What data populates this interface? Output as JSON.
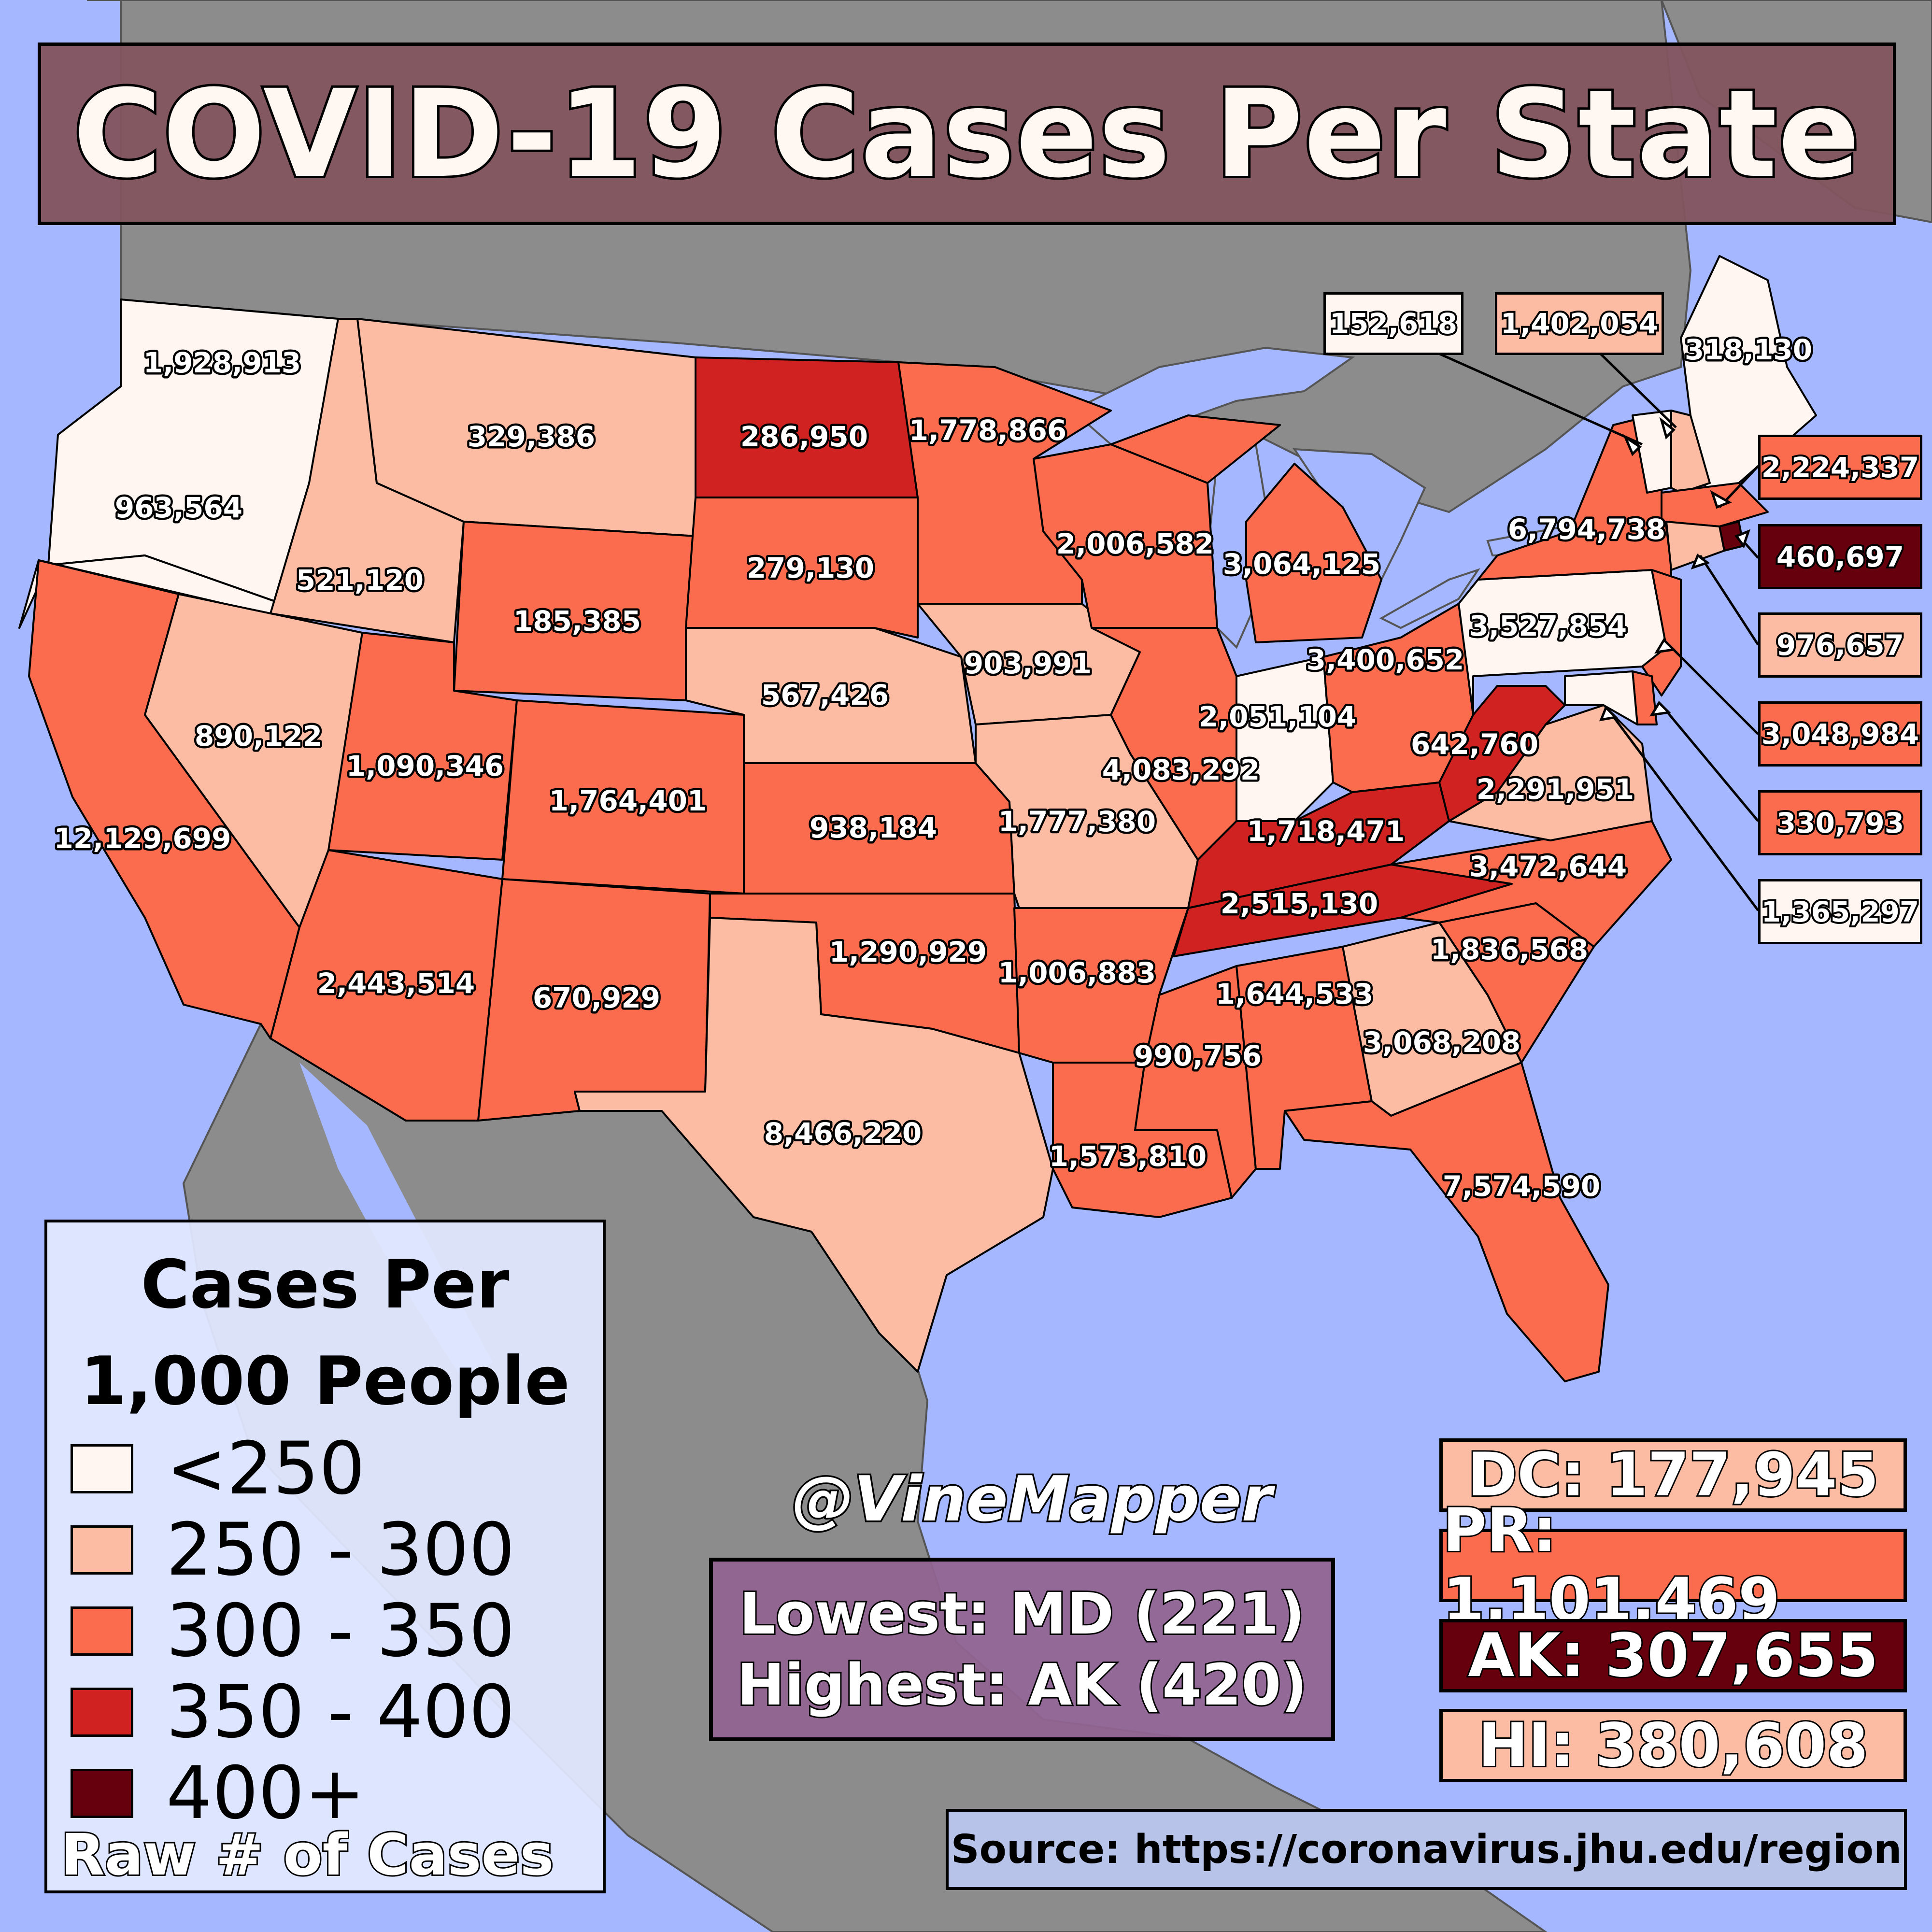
{
  "title": "COVID-19 Cases Per State",
  "colors": {
    "ocean": "#a4b7ff",
    "land_other": "#8c8c8c",
    "bin_lt250": "#fff6f2",
    "bin_250_300": "#fcbca3",
    "bin_300_350": "#fb6b4e",
    "bin_350_400": "#d02321",
    "bin_400_plus": "#66000d"
  },
  "legend": {
    "title_line1": "Cases Per",
    "title_line2": "1,000 People",
    "items": [
      {
        "label": "<250",
        "color": "#fff6f2"
      },
      {
        "label": "250 - 300",
        "color": "#fcbca3"
      },
      {
        "label": "300 - 350",
        "color": "#fb6b4e"
      },
      {
        "label": "350 - 400",
        "color": "#d02321"
      },
      {
        "label": "400+",
        "color": "#66000d"
      }
    ],
    "raw_note": "Raw # of Cases"
  },
  "watermark": "@VineMapper",
  "extremes": {
    "lowest": "Lowest: MD (221)",
    "highest": "Highest: AK (420)"
  },
  "side_boxes": [
    {
      "label": "DC: 177,945",
      "color": "#fcbca3"
    },
    {
      "label": "PR: 1,101,469",
      "color": "#fb6b4e"
    },
    {
      "label": "AK: 307,655",
      "color": "#66000d"
    },
    {
      "label": "HI: 380,608",
      "color": "#fcbca3"
    }
  ],
  "source": "Source: https://coronavirus.jhu.edu/region",
  "states": [
    {
      "abbr": "WA",
      "cases": "1,928,913",
      "color": "#fff6f2"
    },
    {
      "abbr": "OR",
      "cases": "963,564",
      "color": "#fff6f2"
    },
    {
      "abbr": "CA",
      "cases": "12,129,699",
      "color": "#fb6b4e"
    },
    {
      "abbr": "ID",
      "cases": "521,120",
      "color": "#fcbca3"
    },
    {
      "abbr": "NV",
      "cases": "890,122",
      "color": "#fcbca3"
    },
    {
      "abbr": "MT",
      "cases": "329,386",
      "color": "#fcbca3"
    },
    {
      "abbr": "WY",
      "cases": "185,385",
      "color": "#fb6b4e"
    },
    {
      "abbr": "UT",
      "cases": "1,090,346",
      "color": "#fb6b4e"
    },
    {
      "abbr": "AZ",
      "cases": "2,443,514",
      "color": "#fb6b4e"
    },
    {
      "abbr": "CO",
      "cases": "1,764,401",
      "color": "#fb6b4e"
    },
    {
      "abbr": "NM",
      "cases": "670,929",
      "color": "#fb6b4e"
    },
    {
      "abbr": "ND",
      "cases": "286,950",
      "color": "#d02321"
    },
    {
      "abbr": "SD",
      "cases": "279,130",
      "color": "#fb6b4e"
    },
    {
      "abbr": "NE",
      "cases": "567,426",
      "color": "#fcbca3"
    },
    {
      "abbr": "KS",
      "cases": "938,184",
      "color": "#fb6b4e"
    },
    {
      "abbr": "OK",
      "cases": "1,290,929",
      "color": "#fb6b4e"
    },
    {
      "abbr": "TX",
      "cases": "8,466,220",
      "color": "#fcbca3"
    },
    {
      "abbr": "MN",
      "cases": "1,778,866",
      "color": "#fb6b4e"
    },
    {
      "abbr": "IA",
      "cases": "903,991",
      "color": "#fcbca3"
    },
    {
      "abbr": "MO",
      "cases": "1,777,380",
      "color": "#fcbca3"
    },
    {
      "abbr": "AR",
      "cases": "1,006,883",
      "color": "#fb6b4e"
    },
    {
      "abbr": "LA",
      "cases": "1,573,810",
      "color": "#fb6b4e"
    },
    {
      "abbr": "WI",
      "cases": "2,006,582",
      "color": "#fb6b4e"
    },
    {
      "abbr": "IL",
      "cases": "4,083,292",
      "color": "#fb6b4e"
    },
    {
      "abbr": "MI",
      "cases": "3,064,125",
      "color": "#fb6b4e"
    },
    {
      "abbr": "IN",
      "cases": "2,051,104",
      "color": "#fff6f2"
    },
    {
      "abbr": "OH",
      "cases": "3,400,652",
      "color": "#fb6b4e"
    },
    {
      "abbr": "KY",
      "cases": "1,718,471",
      "color": "#d02321"
    },
    {
      "abbr": "TN",
      "cases": "2,515,130",
      "color": "#d02321"
    },
    {
      "abbr": "MS",
      "cases": "990,756",
      "color": "#fb6b4e"
    },
    {
      "abbr": "AL",
      "cases": "1,644,533",
      "color": "#fb6b4e"
    },
    {
      "abbr": "GA",
      "cases": "3,068,208",
      "color": "#fcbca3"
    },
    {
      "abbr": "FL",
      "cases": "7,574,590",
      "color": "#fb6b4e"
    },
    {
      "abbr": "SC",
      "cases": "1,836,568",
      "color": "#fb6b4e"
    },
    {
      "abbr": "NC",
      "cases": "3,472,644",
      "color": "#fb6b4e"
    },
    {
      "abbr": "VA",
      "cases": "2,291,951",
      "color": "#fcbca3"
    },
    {
      "abbr": "WV",
      "cases": "642,760",
      "color": "#d02321"
    },
    {
      "abbr": "PA",
      "cases": "3,527,854",
      "color": "#fff6f2"
    },
    {
      "abbr": "NY",
      "cases": "6,794,738",
      "color": "#fb6b4e"
    },
    {
      "abbr": "ME",
      "cases": "318,130",
      "color": "#fff6f2"
    }
  ],
  "callouts": [
    {
      "abbr": "VT",
      "cases": "152,618",
      "color": "#fff6f2"
    },
    {
      "abbr": "NH",
      "cases": "1,402,054",
      "color": "#fcbca3"
    },
    {
      "abbr": "MA",
      "cases": "2,224,337",
      "color": "#fb6b4e"
    },
    {
      "abbr": "RI",
      "cases": "460,697",
      "color": "#66000d"
    },
    {
      "abbr": "CT",
      "cases": "976,657",
      "color": "#fcbca3"
    },
    {
      "abbr": "NJ",
      "cases": "3,048,984",
      "color": "#fb6b4e"
    },
    {
      "abbr": "DE",
      "cases": "330,793",
      "color": "#fb6b4e"
    },
    {
      "abbr": "MD",
      "cases": "1,365,297",
      "color": "#fff6f2"
    }
  ]
}
